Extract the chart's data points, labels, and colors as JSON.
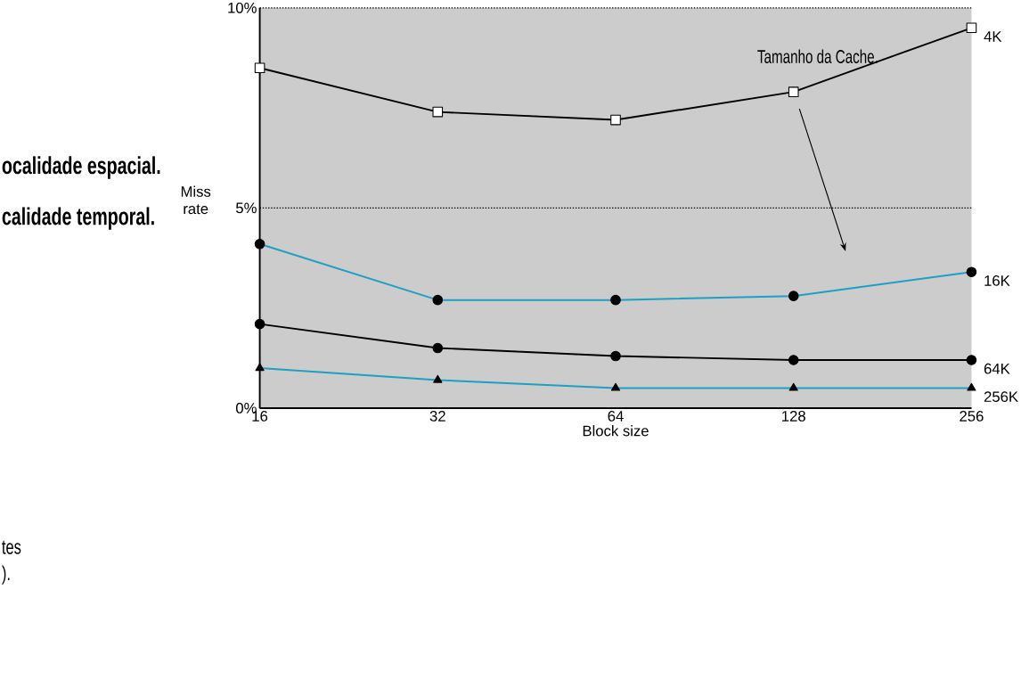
{
  "chart_data": {
    "type": "line",
    "xlabel": "Block size",
    "ylabel": "Miss rate",
    "categories": [
      "16",
      "32",
      "64",
      "128",
      "256"
    ],
    "ylim": [
      0,
      10
    ],
    "yticks": [
      {
        "value": 0,
        "label": "0%"
      },
      {
        "value": 5,
        "label": "5%"
      },
      {
        "value": 10,
        "label": "10%"
      }
    ],
    "grid": "y",
    "line_style": "solid",
    "series": [
      {
        "name": "4K",
        "color": "#000000",
        "marker": "square",
        "values": [
          8.5,
          7.4,
          7.2,
          7.9,
          9.5
        ]
      },
      {
        "name": "16K",
        "color": "#1e9fc4",
        "marker": "circle",
        "values": [
          4.1,
          2.7,
          2.7,
          2.8,
          3.4
        ]
      },
      {
        "name": "64K",
        "color": "#000000",
        "marker": "circle",
        "values": [
          2.1,
          1.5,
          1.3,
          1.2,
          1.2
        ]
      },
      {
        "name": "256K",
        "color": "#1e9fc4",
        "marker": "triangle",
        "values": [
          1.0,
          0.7,
          0.5,
          0.5,
          0.5
        ]
      }
    ],
    "annotations": [
      "ocalidade espacial.",
      "calidade temporal.",
      "tes",
      ").",
      "Tamanho da Cache."
    ]
  }
}
